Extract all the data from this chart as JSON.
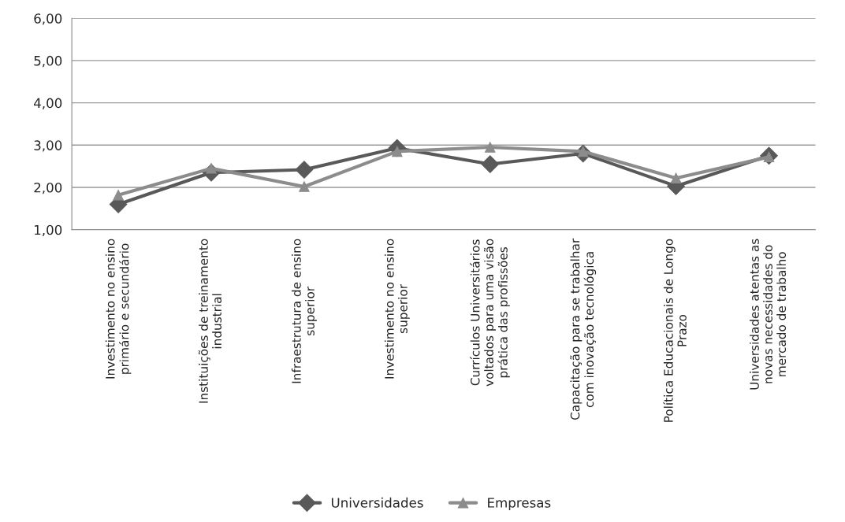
{
  "chart_data": {
    "type": "line",
    "categories": [
      "Investimento no ensino\nprimário e secundário",
      "Instituições de treinamento\nindustrial",
      "Infraestrutura de ensino\nsuperior",
      "Investimento no ensino\nsuperior",
      "Currículos Universitários\nvoltados para uma visão\nprática das profissões",
      "Capacitação para se trabalhar\ncom inovação tecnológica",
      "Política Educacionais de Longo\nPrazo",
      "Universidades atentas as\nnovas necessidades do\nmercado de trabalho"
    ],
    "series": [
      {
        "name": "Universidades",
        "color": "#595959",
        "marker": "diamond",
        "values": [
          1.6,
          2.35,
          2.42,
          2.93,
          2.55,
          2.8,
          2.03,
          2.75
        ]
      },
      {
        "name": "Empresas",
        "color": "#8c8c8c",
        "marker": "triangle",
        "values": [
          1.82,
          2.45,
          2.02,
          2.85,
          2.95,
          2.85,
          2.22,
          2.72
        ]
      }
    ],
    "ylim": [
      1,
      6
    ],
    "yticks": [
      {
        "value": 1,
        "label": "1,00"
      },
      {
        "value": 2,
        "label": "2,00"
      },
      {
        "value": 3,
        "label": "3,00"
      },
      {
        "value": 4,
        "label": "4,00"
      },
      {
        "value": 5,
        "label": "5,00"
      },
      {
        "value": 6,
        "label": "6,00"
      }
    ],
    "grid": "y",
    "legend": "bottom",
    "line_style": "solid"
  }
}
